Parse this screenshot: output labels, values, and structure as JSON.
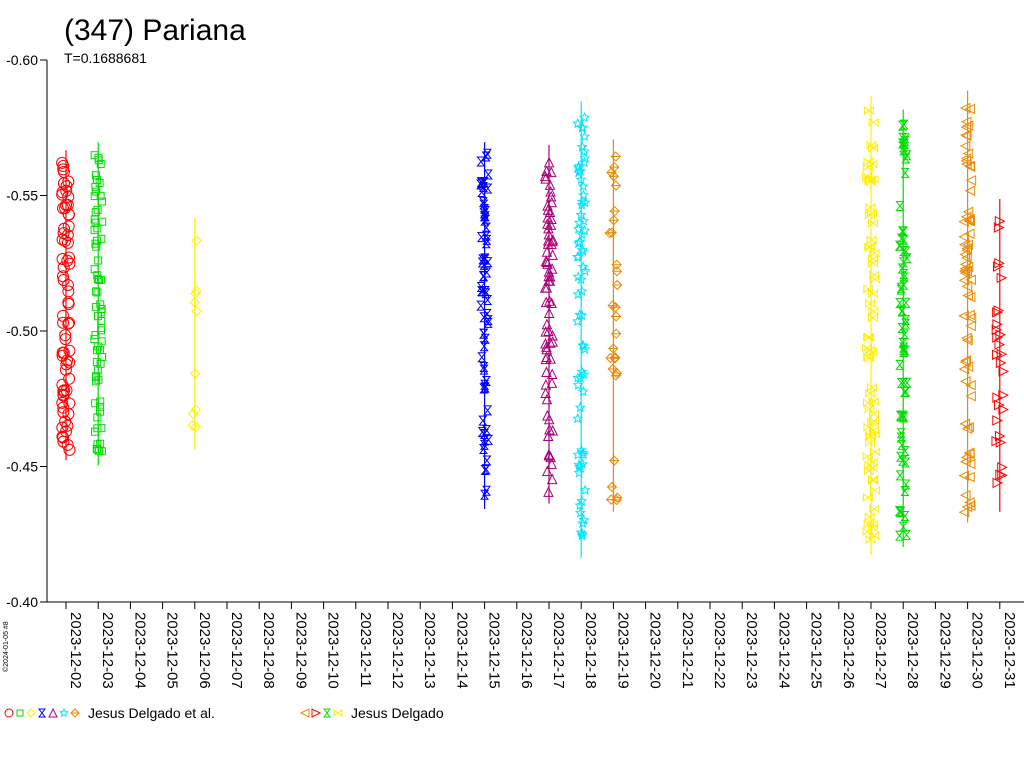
{
  "chart_data": {
    "type": "scatter",
    "title": "(347) Pariana",
    "subtitle": "T=0.1688681",
    "side_label": "©2024-01-05 #8",
    "y_ticks": [
      "-0.60",
      "-0.55",
      "-0.50",
      "-0.45",
      "-0.40"
    ],
    "ylim": [
      -0.6,
      -0.4
    ],
    "y_inverted": true,
    "x_ticks": [
      "2023-12-02",
      "2023-12-03",
      "2023-12-04",
      "2023-12-05",
      "2023-12-06",
      "2023-12-07",
      "2023-12-08",
      "2023-12-09",
      "2023-12-10",
      "2023-12-11",
      "2023-12-12",
      "2023-12-13",
      "2023-12-14",
      "2023-12-15",
      "2023-12-16",
      "2023-12-17",
      "2023-12-18",
      "2023-12-19",
      "2023-12-20",
      "2023-12-21",
      "2023-12-22",
      "2023-12-23",
      "2023-12-24",
      "2023-12-25",
      "2023-12-26",
      "2023-12-27",
      "2023-12-28",
      "2023-12-29",
      "2023-12-30",
      "2023-12-31"
    ],
    "xlim": [
      "2023-12-01",
      "2024-01-01"
    ],
    "grid": false,
    "legend": [
      {
        "name": "Jesus Delgado et al.",
        "symbols": [
          {
            "shape": "circle",
            "color": "#ff0000"
          },
          {
            "shape": "square",
            "color": "#00dd00"
          },
          {
            "shape": "diamond",
            "color": "#ffee00"
          },
          {
            "shape": "hourglass",
            "color": "#0000ff"
          },
          {
            "shape": "triangle",
            "color": "#aa0077"
          },
          {
            "shape": "star",
            "color": "#00e5ff"
          },
          {
            "shape": "diamond-plus",
            "color": "#ee8800"
          }
        ]
      },
      {
        "name": "Jesus Delgado",
        "symbols": [
          {
            "shape": "triangle-left",
            "color": "#ee8800"
          },
          {
            "shape": "triangle-right",
            "color": "#ff0000"
          },
          {
            "shape": "hourglass",
            "color": "#00dd00"
          },
          {
            "shape": "bowtie",
            "color": "#ffee00"
          }
        ]
      }
    ],
    "series": [
      {
        "shape": "circle",
        "color": "#ff0000",
        "date": "2023-12-02",
        "y_range": [
          -0.563,
          -0.456
        ]
      },
      {
        "shape": "square",
        "color": "#00dd00",
        "date": "2023-12-03",
        "y_range": [
          -0.566,
          -0.454
        ]
      },
      {
        "shape": "diamond",
        "color": "#ffee00",
        "date": "2023-12-06",
        "y_range": [
          -0.538,
          -0.46
        ]
      },
      {
        "shape": "hourglass",
        "color": "#0000ff",
        "date": "2023-12-15",
        "y_range": [
          -0.566,
          -0.438
        ]
      },
      {
        "shape": "triangle",
        "color": "#aa0077",
        "date": "2023-12-17",
        "y_range": [
          -0.565,
          -0.44
        ]
      },
      {
        "shape": "star",
        "color": "#00e5ff",
        "date": "2023-12-18",
        "y_range": [
          -0.581,
          -0.42
        ]
      },
      {
        "shape": "diamond-plus",
        "color": "#ee8800",
        "date": "2023-12-19",
        "y_range": [
          -0.567,
          -0.437
        ]
      },
      {
        "shape": "bowtie",
        "color": "#ffee00",
        "date": "2023-12-27",
        "y_range": [
          -0.583,
          -0.421
        ]
      },
      {
        "shape": "hourglass",
        "color": "#00dd00",
        "date": "2023-12-28",
        "y_range": [
          -0.578,
          -0.424
        ]
      },
      {
        "shape": "triangle-left",
        "color": "#ee8800",
        "date": "2023-12-30",
        "y_range": [
          -0.585,
          -0.433
        ]
      },
      {
        "shape": "triangle-right",
        "color": "#ff0000",
        "date": "2023-12-31",
        "y_range": [
          -0.545,
          -0.437
        ]
      }
    ]
  }
}
